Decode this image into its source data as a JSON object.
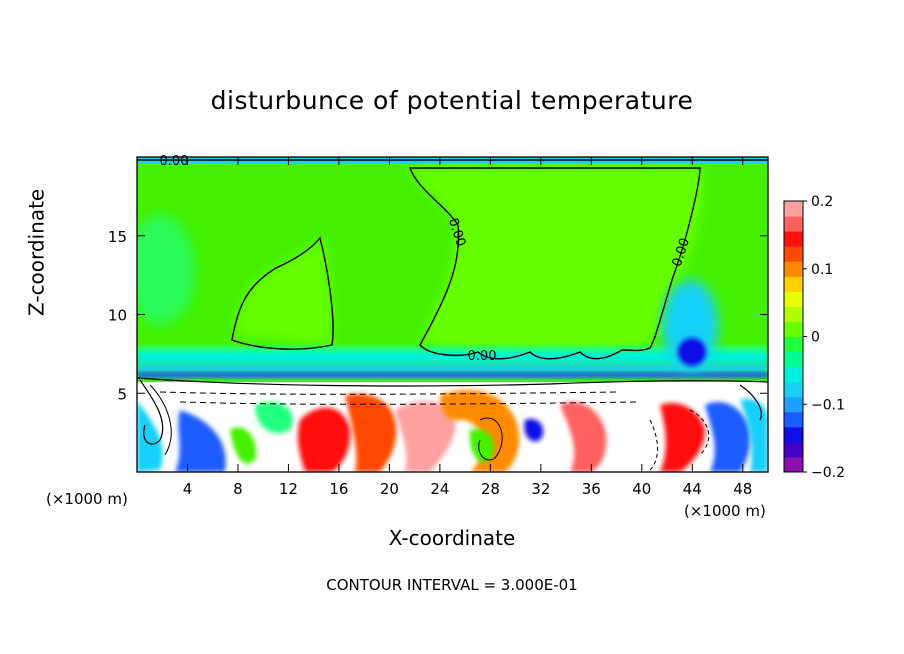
{
  "chart_data": {
    "type": "heatmap",
    "title": "disturbunce of potential temperature",
    "xlabel": "X-coordinate",
    "ylabel": "Z-coordinate",
    "x_unit_label": "(×1000 m)",
    "x_ticks": [
      "4",
      "8",
      "12",
      "16",
      "20",
      "24",
      "28",
      "32",
      "36",
      "40",
      "44",
      "48"
    ],
    "y_ticks": [
      "5",
      "10",
      "15"
    ],
    "xlim": [
      0,
      50
    ],
    "ylim": [
      0,
      20
    ],
    "colorbar": {
      "range": [
        -0.2,
        0.2
      ],
      "tick_labels": [
        "0.2",
        "0.1",
        "0",
        "−0.1",
        "−0.2"
      ],
      "colors": [
        "#8b10b0",
        "#4400c8",
        "#1010e6",
        "#1a5cff",
        "#1ea0ff",
        "#18d0f8",
        "#00f0e0",
        "#00ff90",
        "#20ff40",
        "#6aff00",
        "#b0ff00",
        "#e8ff00",
        "#ffd000",
        "#ff8a00",
        "#ff4a00",
        "#ff1010",
        "#ff6060",
        "#ffa0a0"
      ]
    },
    "contour_labels": [
      "0.00",
      "0.00",
      "0.00",
      "0.00"
    ],
    "contour_interval_text": "CONTOUR INTERVAL = 3.000E-01"
  }
}
